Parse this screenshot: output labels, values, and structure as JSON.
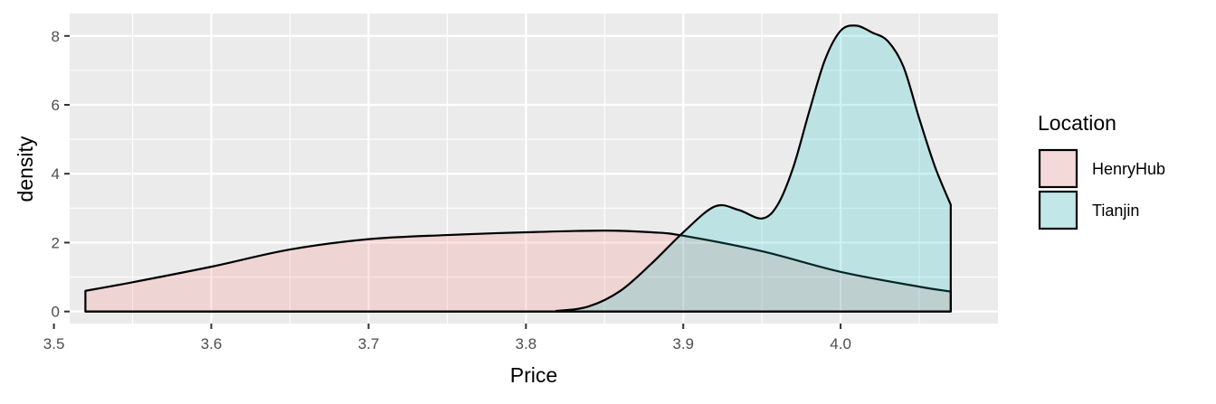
{
  "chart_data": {
    "type": "area",
    "xlabel": "Price",
    "ylabel": "density",
    "xlim": [
      3.51,
      4.1
    ],
    "ylim": [
      -0.35,
      8.65
    ],
    "x_ticks": [
      3.5,
      3.6,
      3.7,
      3.8,
      3.9,
      4.0
    ],
    "x_tick_labels": [
      "3.5",
      "3.6",
      "3.7",
      "3.8",
      "3.9",
      "4.0"
    ],
    "y_ticks": [
      0,
      2,
      4,
      6,
      8
    ],
    "y_tick_labels": [
      "0",
      "2",
      "4",
      "6",
      "8"
    ],
    "grid": true,
    "legend_position": "right",
    "legend_title": "Location",
    "series": [
      {
        "name": "HenryHub",
        "fill": "#F8766D",
        "x": [
          3.52,
          3.55,
          3.6,
          3.65,
          3.7,
          3.75,
          3.8,
          3.85,
          3.88,
          3.9,
          3.95,
          4.0,
          4.05,
          4.07
        ],
        "y": [
          0.6,
          0.85,
          1.3,
          1.8,
          2.1,
          2.22,
          2.3,
          2.35,
          2.3,
          2.2,
          1.75,
          1.15,
          0.72,
          0.58
        ]
      },
      {
        "name": "Tianjin",
        "fill": "#00BFC4",
        "x": [
          3.52,
          3.8,
          3.82,
          3.84,
          3.86,
          3.88,
          3.9,
          3.92,
          3.935,
          3.95,
          3.96,
          3.97,
          3.98,
          3.99,
          4.0,
          4.01,
          4.02,
          4.03,
          4.04,
          4.05,
          4.06,
          4.07
        ],
        "y": [
          0,
          0,
          0.02,
          0.15,
          0.6,
          1.4,
          2.3,
          3.05,
          2.95,
          2.7,
          3.1,
          4.2,
          5.8,
          7.3,
          8.15,
          8.3,
          8.1,
          7.85,
          7.1,
          5.6,
          4.2,
          3.1
        ]
      }
    ]
  }
}
